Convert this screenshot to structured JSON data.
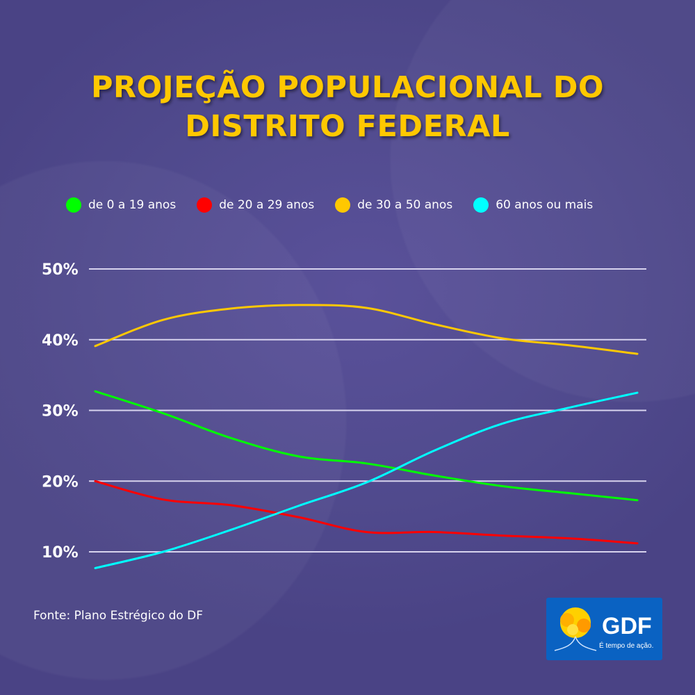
{
  "title_line1": "PROJEÇÃO POPULACIONAL DO",
  "title_line2": "DISTRITO FEDERAL",
  "source": "Fonte: Plano Estrégico do DF",
  "logo": {
    "text": "GDF",
    "tagline": "É tempo de ação."
  },
  "chart_data": {
    "type": "line",
    "title": "PROJEÇÃO POPULACIONAL DO DISTRITO FEDERAL",
    "xlabel": "",
    "ylabel": "",
    "ylim": [
      10,
      50
    ],
    "yticks": [
      "50%",
      "40%",
      "30%",
      "20%",
      "10%"
    ],
    "ytick_values": [
      50,
      40,
      30,
      20,
      10
    ],
    "grid": true,
    "legend_placement": "top",
    "x": [
      0,
      1,
      2,
      3,
      4,
      5,
      6,
      7,
      8
    ],
    "series": [
      {
        "name": "de 0 a 19 anos",
        "color": "#00ff00",
        "values": [
          32.7,
          29.6,
          26.1,
          23.5,
          22.5,
          20.8,
          19.3,
          18.3,
          17.3
        ]
      },
      {
        "name": "de 20 a 29 anos",
        "color": "#ff0000",
        "values": [
          20.0,
          17.4,
          16.6,
          14.9,
          12.8,
          12.8,
          12.3,
          11.9,
          11.2
        ]
      },
      {
        "name": "de 30 a 50 anos",
        "color": "#ffc800",
        "values": [
          39.1,
          42.8,
          44.4,
          44.9,
          44.5,
          42.2,
          40.2,
          39.2,
          38.0
        ]
      },
      {
        "name": "60 anos ou mais",
        "color": "#00ffff",
        "values": [
          7.7,
          10.0,
          13.1,
          16.5,
          19.8,
          24.3,
          28.1,
          30.4,
          32.5
        ]
      }
    ]
  }
}
